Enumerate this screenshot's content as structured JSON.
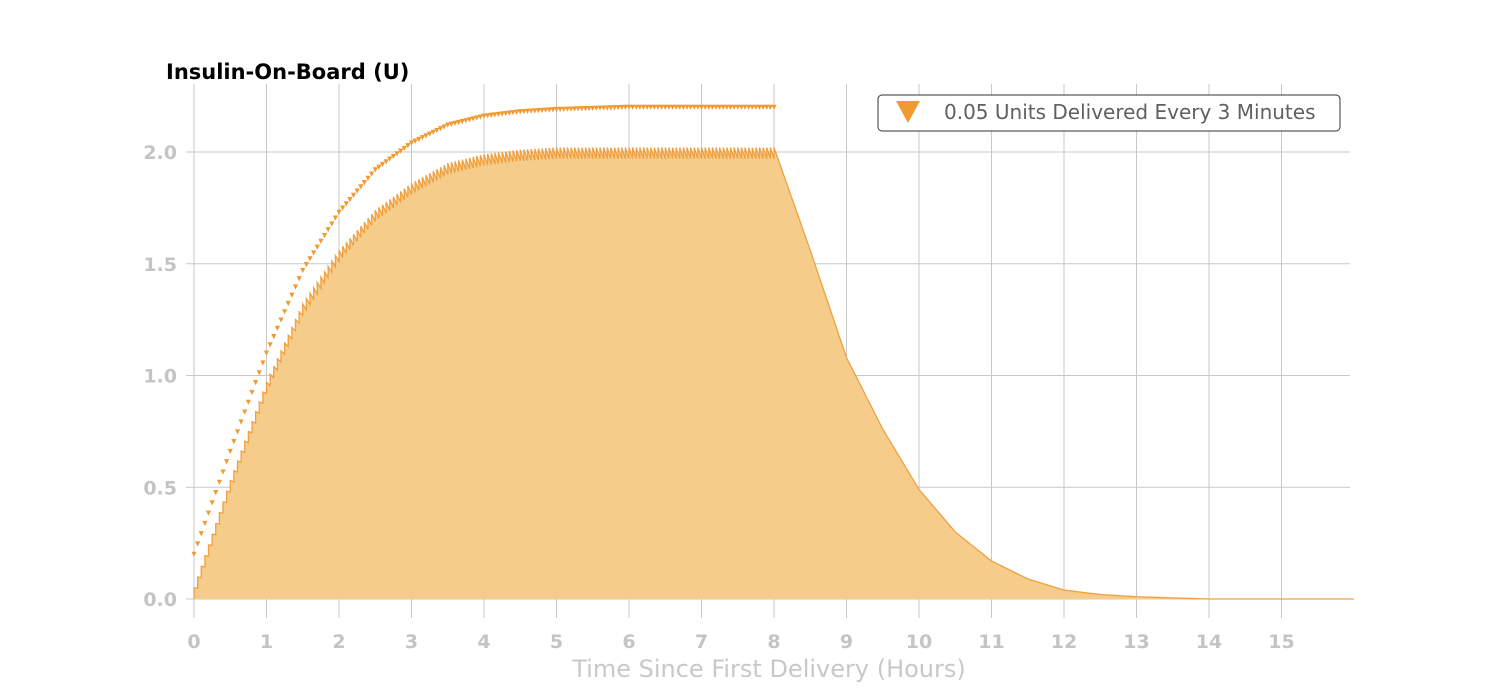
{
  "chart_data": {
    "type": "area",
    "title": "Insulin-On-Board (U)",
    "xlabel": "Time Since First Delivery (Hours)",
    "ylabel": "",
    "xlim": [
      -0.05,
      16
    ],
    "ylim": [
      -0.08,
      2.3
    ],
    "x_ticks": [
      0,
      1,
      2,
      3,
      4,
      5,
      6,
      7,
      8,
      9,
      10,
      11,
      12,
      13,
      14,
      15
    ],
    "y_ticks": [
      0.0,
      0.5,
      1.0,
      1.5,
      2.0
    ],
    "x_tick_labels": [
      "0",
      "1",
      "2",
      "3",
      "4",
      "5",
      "6",
      "7",
      "8",
      "9",
      "10",
      "11",
      "12",
      "13",
      "14",
      "15"
    ],
    "y_tick_labels": [
      "0.0",
      "0.5",
      "1.0",
      "1.5",
      "2.0"
    ],
    "grid": true,
    "legend_position": "top-right",
    "colors": {
      "line": "#f0a040",
      "fill": "#f5cc8a",
      "marker": "#f09a30"
    },
    "series": [
      {
        "name": "0.05 Units Delivered Every 3 Minutes",
        "type": "triangle-markers",
        "x": [
          0,
          0.5,
          1,
          1.5,
          2,
          2.5,
          3,
          3.5,
          4,
          4.5,
          5,
          6,
          7,
          8
        ],
        "values": [
          0.2,
          0.66,
          1.1,
          1.47,
          1.73,
          1.92,
          2.04,
          2.12,
          2.16,
          2.18,
          2.19,
          2.2,
          2.2,
          2.2
        ]
      },
      {
        "type": "area",
        "x": [
          0,
          0.5,
          1,
          1.5,
          2,
          2.5,
          3,
          3.5,
          4,
          4.5,
          5,
          6,
          7,
          8,
          8.5,
          9,
          9.5,
          10,
          10.5,
          11,
          11.5,
          12,
          12.5,
          13,
          14,
          15,
          16
        ],
        "values": [
          0.05,
          0.53,
          0.97,
          1.32,
          1.56,
          1.74,
          1.86,
          1.95,
          1.99,
          2.01,
          2.02,
          2.02,
          2.02,
          2.02,
          1.56,
          1.08,
          0.76,
          0.49,
          0.3,
          0.17,
          0.09,
          0.04,
          0.02,
          0.01,
          0.0,
          0.0,
          0.0
        ]
      }
    ]
  }
}
